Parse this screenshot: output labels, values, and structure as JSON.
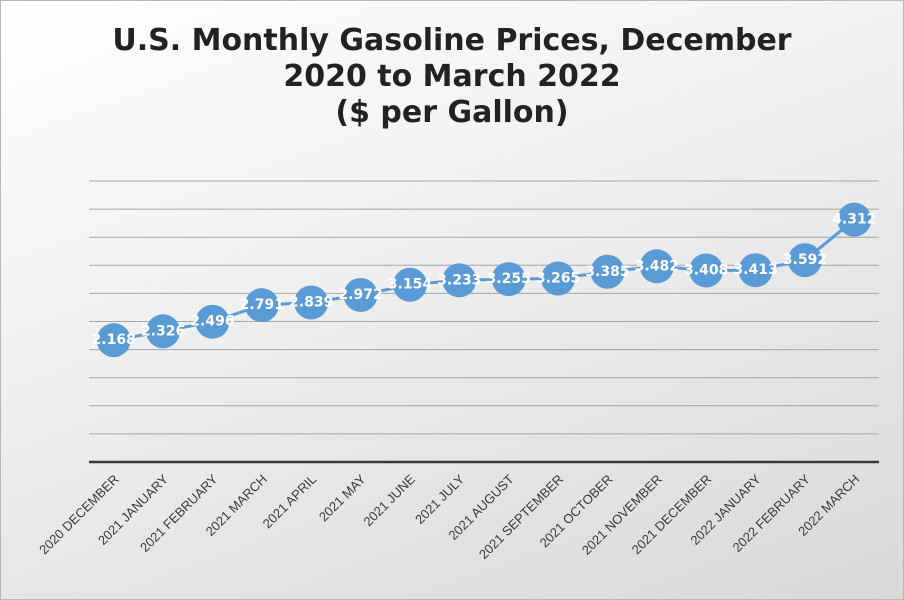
{
  "chart_data": {
    "type": "line",
    "title_lines": [
      "U.S. Monthly Gasoline Prices, December",
      "2020 to March 2022",
      "($ per Gallon)"
    ],
    "categories": [
      "2020 DECEMBER",
      "2021 JANUARY",
      "2021 FEBRUARY",
      "2021 MARCH",
      "2021 APRIL",
      "2021 MAY",
      "2021 JUNE",
      "2021 JULY",
      "2021 AUGUST",
      "2021 SEPTEMBER",
      "2021 OCTOBER",
      "2021 NOVEMBER",
      "2021 DECEMBER",
      "2022 JANUARY",
      "2022 FEBRUARY",
      "2022 MARCH"
    ],
    "values": [
      2.168,
      2.326,
      2.496,
      2.791,
      2.839,
      2.972,
      3.154,
      3.233,
      3.255,
      3.265,
      3.385,
      3.482,
      3.408,
      3.413,
      3.592,
      4.312
    ],
    "data_labels": [
      "2.168",
      "2.326",
      "2.496",
      "2.791",
      "2.839",
      "2.972",
      "3.154",
      "3.233",
      "3.255",
      "3.265",
      "3.385",
      "3.482",
      "3.408",
      "3.413",
      "3.592",
      "4.312"
    ],
    "ylim": [
      0,
      5
    ],
    "grid": true,
    "legend": "none",
    "y_axis_labels_shown": false,
    "colors": {
      "series": "#5b9bd5",
      "axis": "#3a3a3a",
      "grid": "#a6a6a6"
    }
  }
}
